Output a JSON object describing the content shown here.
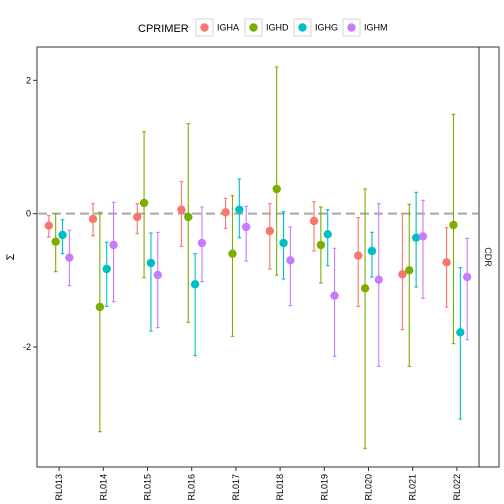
{
  "chart_data": {
    "type": "scatter",
    "ylabel": "Σ",
    "xlabel": "",
    "facet_label": "CDR",
    "legend": {
      "title": "CPRIMER",
      "position": "top",
      "entries": [
        "IGHA",
        "IGHD",
        "IGHG",
        "IGHM"
      ]
    },
    "colors": {
      "IGHA": "#F8766D",
      "IGHD": "#7CAE00",
      "IGHG": "#00BFC4",
      "IGHM": "#C77CFF"
    },
    "ylim": [
      -3.8,
      2.5
    ],
    "yticks": [
      -2,
      0,
      2
    ],
    "ytick_labels": [
      "-2",
      "0",
      "2"
    ],
    "reference_line": 0,
    "grid": false,
    "categories": [
      "RL013",
      "RL014",
      "RL015",
      "RL016",
      "RL017",
      "RL018",
      "RL019",
      "RL020",
      "RL021",
      "RL022"
    ],
    "series": [
      {
        "name": "IGHA",
        "values": [
          -0.18,
          -0.08,
          -0.05,
          0.06,
          0.02,
          -0.26,
          -0.11,
          -0.63,
          -0.91,
          -0.73
        ],
        "lower": [
          -0.35,
          -0.33,
          -0.3,
          -0.49,
          -0.22,
          -0.83,
          -0.56,
          -1.39,
          -1.74,
          -1.4
        ],
        "upper": [
          -0.03,
          0.15,
          0.15,
          0.48,
          0.23,
          0.15,
          0.18,
          -0.06,
          0.0,
          -0.21
        ]
      },
      {
        "name": "IGHD",
        "values": [
          -0.42,
          -1.4,
          0.16,
          -0.05,
          -0.6,
          0.37,
          -0.47,
          -1.12,
          -0.85,
          -0.17
        ],
        "lower": [
          -0.87,
          -3.27,
          -0.96,
          -1.63,
          -1.84,
          -0.92,
          -1.04,
          -3.52,
          -2.29,
          -1.95
        ],
        "upper": [
          0.0,
          0.02,
          1.23,
          1.35,
          0.27,
          2.2,
          0.1,
          0.37,
          0.14,
          1.49
        ]
      },
      {
        "name": "IGHG",
        "values": [
          -0.32,
          -0.83,
          -0.74,
          -1.06,
          0.06,
          -0.44,
          -0.31,
          -0.56,
          -0.36,
          -1.78
        ],
        "lower": [
          -0.6,
          -1.39,
          -1.76,
          -2.13,
          -0.36,
          -0.98,
          -0.78,
          -0.95,
          -1.1,
          -3.08
        ],
        "upper": [
          -0.09,
          -0.43,
          -0.29,
          -0.6,
          0.52,
          0.03,
          0.06,
          -0.28,
          0.32,
          -0.81
        ]
      },
      {
        "name": "IGHM",
        "values": [
          -0.66,
          -0.47,
          -0.92,
          -0.44,
          -0.2,
          -0.7,
          -1.23,
          -0.99,
          -0.34,
          -0.95
        ],
        "lower": [
          -1.08,
          -1.32,
          -1.71,
          -1.02,
          -0.71,
          -1.38,
          -2.14,
          -2.29,
          -1.27,
          -1.89
        ],
        "upper": [
          -0.25,
          0.17,
          -0.28,
          0.1,
          0.11,
          -0.2,
          -0.52,
          0.15,
          0.2,
          -0.37
        ]
      }
    ]
  }
}
